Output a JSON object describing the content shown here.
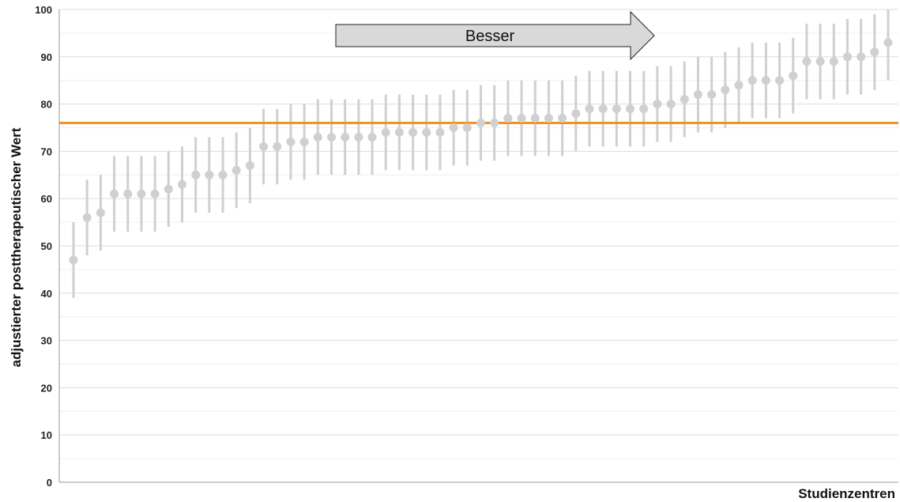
{
  "chart_data": {
    "type": "scatter",
    "title": "",
    "xlabel": "Studienzentren",
    "ylabel": "adjustierter posttherapeutischer Wert",
    "ylim": [
      0,
      100
    ],
    "yticks": [
      0,
      10,
      20,
      30,
      40,
      50,
      60,
      70,
      80,
      90,
      100
    ],
    "grid": true,
    "reference_line": {
      "value": 76,
      "color": "#f5921e"
    },
    "annotation": {
      "text": "Besser",
      "direction": "right"
    },
    "colors": {
      "points": "#d0d0d0",
      "error_bars": "#d0d0d0",
      "grid": "#e8e8e8",
      "axis": "#999999"
    },
    "series": [
      {
        "values": [
          47,
          56,
          57,
          61,
          61,
          61,
          61,
          62,
          63,
          65,
          65,
          65,
          66,
          67,
          71,
          71,
          72,
          72,
          73,
          73,
          73,
          73,
          73,
          74,
          74,
          74,
          74,
          74,
          75,
          75,
          76,
          76,
          77,
          77,
          77,
          77,
          77,
          78,
          79,
          79,
          79,
          79,
          79,
          80,
          80,
          81,
          82,
          82,
          83,
          84,
          85,
          85,
          85,
          86,
          89,
          89,
          89,
          90,
          90,
          91,
          93
        ],
        "lower": [
          39,
          48,
          49,
          53,
          53,
          53,
          53,
          54,
          55,
          57,
          57,
          57,
          58,
          59,
          63,
          63,
          64,
          64,
          65,
          65,
          65,
          65,
          65,
          66,
          66,
          66,
          66,
          66,
          67,
          67,
          68,
          68,
          69,
          69,
          69,
          69,
          69,
          70,
          71,
          71,
          71,
          71,
          71,
          72,
          72,
          73,
          74,
          74,
          75,
          76,
          77,
          77,
          77,
          78,
          81,
          81,
          81,
          82,
          82,
          83,
          85
        ],
        "upper": [
          55,
          64,
          65,
          69,
          69,
          69,
          69,
          70,
          71,
          73,
          73,
          73,
          74,
          75,
          79,
          79,
          80,
          80,
          81,
          81,
          81,
          81,
          81,
          82,
          82,
          82,
          82,
          82,
          83,
          83,
          84,
          84,
          85,
          85,
          85,
          85,
          85,
          86,
          87,
          87,
          87,
          87,
          87,
          88,
          88,
          89,
          90,
          90,
          91,
          92,
          93,
          93,
          93,
          94,
          97,
          97,
          97,
          98,
          98,
          99,
          100
        ]
      }
    ]
  }
}
